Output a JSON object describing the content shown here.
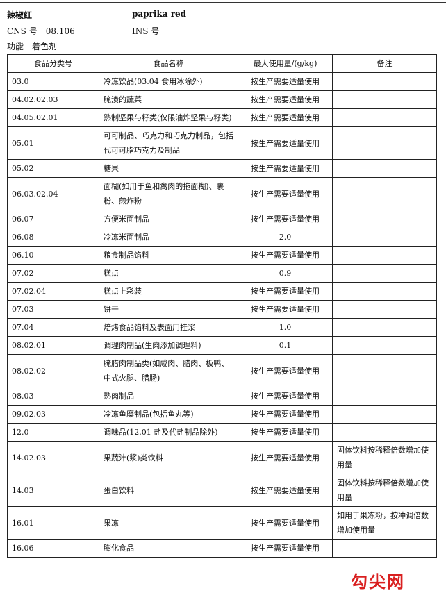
{
  "header": {
    "name_cn": "辣椒红",
    "name_en": "paprika red",
    "cns_label": "CNS 号",
    "cns_value": "08.106",
    "ins_label": "INS 号",
    "ins_value": "一",
    "function_label": "功能",
    "function_value": "着色剂"
  },
  "table": {
    "columns": [
      "食品分类号",
      "食品名称",
      "最大使用量/(g/kg)",
      "备注"
    ],
    "rows": [
      {
        "code": "03.0",
        "name": "冷冻饮品(03.04 食用冰除外)",
        "max": "按生产需要适量使用"
      },
      {
        "code": "04.02.02.03",
        "name": "腌渍的蔬菜",
        "max": "按生产需要适量使用"
      },
      {
        "code": "04.05.02.01",
        "name": "熟制坚果与籽类(仅限油炸坚果与籽类)",
        "max": "按生产需要适量使用"
      },
      {
        "code": "05.01",
        "name": "可可制品、巧克力和巧克力制品，包括代可可脂巧克力及制品",
        "max": "按生产需要适量使用"
      },
      {
        "code": "05.02",
        "name": "糖果",
        "max": "按生产需要适量使用"
      },
      {
        "code": "06.03.02.04",
        "name": "面糊(如用于鱼和禽肉的拖面糊)、裹粉、煎炸粉",
        "max": "按生产需要适量使用"
      },
      {
        "code": "06.07",
        "name": "方便米面制品",
        "max": "按生产需要适量使用"
      },
      {
        "code": "06.08",
        "name": "冷冻米面制品",
        "max": "2.0"
      },
      {
        "code": "06.10",
        "name": "粮食制品馅料",
        "max": "按生产需要适量使用"
      },
      {
        "code": "07.02",
        "name": "糕点",
        "max": "0.9"
      },
      {
        "code": "07.02.04",
        "name": "糕点上彩装",
        "max": "按生产需要适量使用"
      },
      {
        "code": "07.03",
        "name": "饼干",
        "max": "按生产需要适量使用"
      },
      {
        "code": "07.04",
        "name": "焙烤食品馅料及表面用挂浆",
        "max": "1.0"
      },
      {
        "code": "08.02.01",
        "name": "调理肉制品(生肉添加调理料)",
        "max": "0.1"
      },
      {
        "code": "08.02.02",
        "name": "腌腊肉制品类(如咸肉、腊肉、板鸭、中式火腿、腊肠)",
        "max": "按生产需要适量使用"
      },
      {
        "code": "08.03",
        "name": "熟肉制品",
        "max": "按生产需要适量使用"
      },
      {
        "code": "09.02.03",
        "name": "冷冻鱼糜制品(包括鱼丸等)",
        "max": "按生产需要适量使用"
      },
      {
        "code": "12.0",
        "name": "调味品(12.01 盐及代盐制品除外)",
        "max": "按生产需要适量使用"
      },
      {
        "code": "14.02.03",
        "name": "果蔬汁(浆)类饮料",
        "max": "按生产需要适量使用",
        "note": "固体饮料按稀释倍数增加使用量"
      },
      {
        "code": "14.03",
        "name": "蛋白饮料",
        "max": "按生产需要适量使用",
        "note": "固体饮料按稀释倍数增加使用量"
      },
      {
        "code": "16.01",
        "name": "果冻",
        "max": "按生产需要适量使用",
        "note": "如用于果冻粉，按冲调倍数增加使用量"
      },
      {
        "code": "16.06",
        "name": "膨化食品",
        "max": "按生产需要适量使用"
      }
    ]
  },
  "watermark": "勾尖网"
}
